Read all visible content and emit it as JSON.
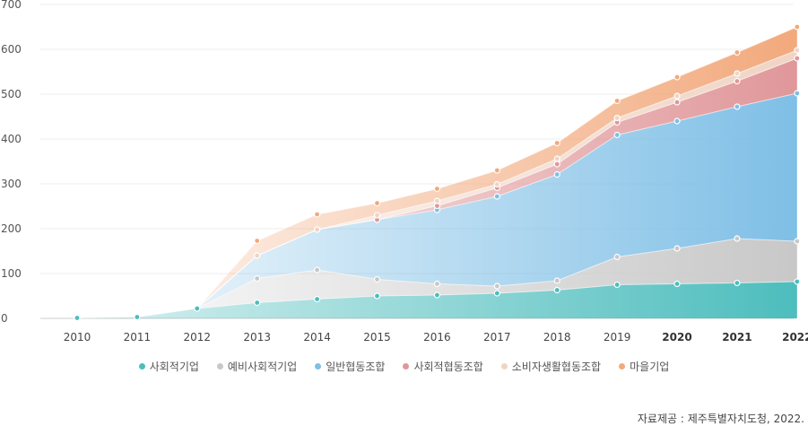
{
  "chart_data": {
    "type": "area",
    "stacked": true,
    "categories": [
      "2010",
      "2011",
      "2012",
      "2013",
      "2014",
      "2015",
      "2016",
      "2017",
      "2018",
      "2019",
      "2020",
      "2021",
      "2022"
    ],
    "bold_categories": [
      "2020",
      "2021",
      "2022"
    ],
    "ylim": [
      0,
      700
    ],
    "yticks": [
      "0",
      "100",
      "200",
      "300",
      "400",
      "500",
      "600",
      "700"
    ],
    "grid": true,
    "legend_position": "bottom",
    "series": [
      {
        "name": "사회적기업",
        "color": "#4dbdbd",
        "values": [
          1,
          3,
          22,
          35,
          43,
          50,
          52,
          56,
          63,
          75,
          77,
          79,
          82
        ],
        "start_index": 0
      },
      {
        "name": "예비사회적기업",
        "color": "#c8c8c8",
        "values": [
          null,
          null,
          0,
          54,
          65,
          37,
          25,
          16,
          21,
          62,
          79,
          99,
          90
        ],
        "start_index": 3
      },
      {
        "name": "일반협동조합",
        "color": "#7fbfe6",
        "values": [
          null,
          null,
          0,
          51,
          90,
          133,
          165,
          200,
          237,
          272,
          284,
          294,
          330
        ],
        "start_index": 3
      },
      {
        "name": "사회적협동조합",
        "color": "#e0979a",
        "values": [
          null,
          null,
          0,
          0,
          0,
          0,
          9,
          19,
          23,
          28,
          42,
          57,
          78
        ],
        "start_index": 3
      },
      {
        "name": "소비자생활협동조합",
        "color": "#f0d4c4",
        "values": [
          null,
          null,
          0,
          0,
          0,
          10,
          11,
          8,
          12,
          10,
          14,
          17,
          18
        ],
        "start_index": 3
      },
      {
        "name": "마을기업",
        "color": "#f2a97c",
        "values": [
          null,
          null,
          0,
          33,
          34,
          27,
          27,
          31,
          35,
          38,
          42,
          47,
          52
        ],
        "start_index": 3
      }
    ]
  },
  "source": "자료제공 : 제주특별자치도청, 2022."
}
